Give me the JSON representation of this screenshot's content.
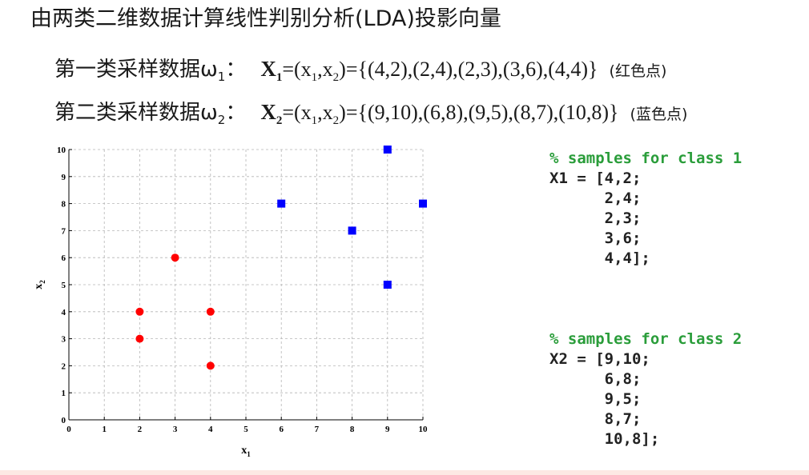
{
  "slide": {
    "title": "由两类二维数据计算线性判别分析(LDA)投影向量"
  },
  "class1": {
    "label": "第一类采样数据ω",
    "label_sub": "1",
    "colon": "：",
    "X": "X",
    "X_sub": "1",
    "eq_a": "=(x",
    "x_sub1": "1",
    "eq_b": ",x",
    "x_sub2": "2",
    "eq_c": ")={(4,2),(2,4),(2,3),(3,6),(4,4)}",
    "note": "(红色点)"
  },
  "class2": {
    "label": "第二类采样数据ω",
    "label_sub": "2",
    "colon": "：",
    "X": "X",
    "X_sub": "2",
    "eq_a": "=(x",
    "x_sub1": "1",
    "eq_b": ",x",
    "x_sub2": "2",
    "eq_c": ")={(9,10),(6,8),(9,5),(8,7),(10,8)}",
    "note": "(蓝色点)"
  },
  "chart_data": {
    "type": "scatter",
    "title": "",
    "xlabel": "x",
    "xlabel_sub": "1",
    "ylabel": "x",
    "ylabel_sub": "2",
    "xlim": [
      0,
      10
    ],
    "ylim": [
      0,
      10
    ],
    "xticks": [
      0,
      1,
      2,
      3,
      4,
      5,
      6,
      7,
      8,
      9,
      10
    ],
    "yticks": [
      0,
      1,
      2,
      3,
      4,
      5,
      6,
      7,
      8,
      9,
      10
    ],
    "grid": true,
    "series": [
      {
        "marker": "circle",
        "color": "#ff0000",
        "points": [
          [
            4,
            2
          ],
          [
            2,
            4
          ],
          [
            2,
            3
          ],
          [
            3,
            6
          ],
          [
            4,
            4
          ]
        ]
      },
      {
        "marker": "square",
        "color": "#0000ff",
        "points": [
          [
            9,
            10
          ],
          [
            6,
            8
          ],
          [
            9,
            5
          ],
          [
            8,
            7
          ],
          [
            10,
            8
          ]
        ]
      }
    ]
  },
  "code": {
    "block1": {
      "comment": "% samples for class 1",
      "lines": [
        "X1 = [4,2;",
        "      2,4;",
        "      2,3;",
        "      3,6;",
        "      4,4];"
      ]
    },
    "block2": {
      "comment": "% samples for class 2",
      "lines": [
        "X2 = [9,10;",
        "      6,8;",
        "      9,5;",
        "      8,7;",
        "      10,8];"
      ]
    }
  },
  "colors": {
    "comment": "#2a9d3a",
    "bottom_bar": "#fde9e4"
  }
}
